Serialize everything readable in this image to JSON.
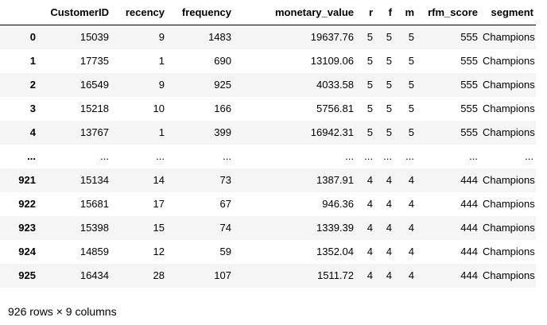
{
  "table": {
    "columns": [
      "",
      "CustomerID",
      "recency",
      "frequency",
      "monetary_value",
      "r",
      "f",
      "m",
      "rfm_score",
      "segment"
    ],
    "rows": [
      {
        "index": "0",
        "cells": [
          "15039",
          "9",
          "1483",
          "19637.76",
          "5",
          "5",
          "5",
          "555",
          "Champions"
        ]
      },
      {
        "index": "1",
        "cells": [
          "17735",
          "1",
          "690",
          "13109.06",
          "5",
          "5",
          "5",
          "555",
          "Champions"
        ]
      },
      {
        "index": "2",
        "cells": [
          "16549",
          "9",
          "925",
          "4033.58",
          "5",
          "5",
          "5",
          "555",
          "Champions"
        ]
      },
      {
        "index": "3",
        "cells": [
          "15218",
          "10",
          "166",
          "5756.81",
          "5",
          "5",
          "5",
          "555",
          "Champions"
        ]
      },
      {
        "index": "4",
        "cells": [
          "13767",
          "1",
          "399",
          "16942.31",
          "5",
          "5",
          "5",
          "555",
          "Champions"
        ]
      },
      {
        "index": "...",
        "cells": [
          "...",
          "...",
          "...",
          "...",
          "...",
          "...",
          "...",
          "...",
          "..."
        ]
      },
      {
        "index": "921",
        "cells": [
          "15134",
          "14",
          "73",
          "1387.91",
          "4",
          "4",
          "4",
          "444",
          "Champions"
        ]
      },
      {
        "index": "922",
        "cells": [
          "15681",
          "17",
          "67",
          "946.36",
          "4",
          "4",
          "4",
          "444",
          "Champions"
        ]
      },
      {
        "index": "923",
        "cells": [
          "15398",
          "15",
          "74",
          "1339.39",
          "4",
          "4",
          "4",
          "444",
          "Champions"
        ]
      },
      {
        "index": "924",
        "cells": [
          "14859",
          "12",
          "59",
          "1352.04",
          "4",
          "4",
          "4",
          "444",
          "Champions"
        ]
      },
      {
        "index": "925",
        "cells": [
          "16434",
          "28",
          "107",
          "1511.72",
          "4",
          "4",
          "4",
          "444",
          "Champions"
        ]
      }
    ]
  },
  "footer": {
    "shape_text": "926 rows × 9 columns"
  }
}
